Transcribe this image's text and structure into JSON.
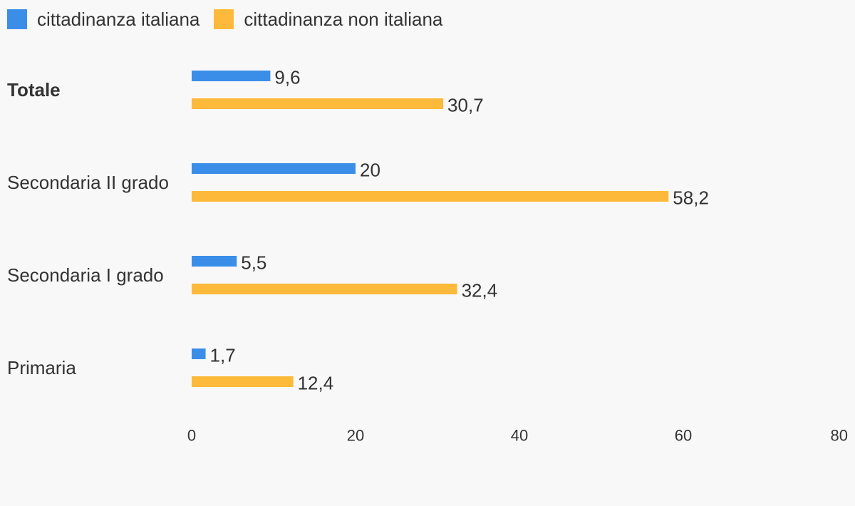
{
  "chart_data": {
    "type": "bar",
    "orientation": "horizontal",
    "categories": [
      "Totale",
      "Secondaria II grado",
      "Secondaria I grado",
      "Primaria"
    ],
    "emphasized_category": "Totale",
    "series": [
      {
        "name": "cittadinanza italiana",
        "color": "#3a8ee8",
        "values": [
          9.6,
          20,
          5.5,
          1.7
        ],
        "value_labels": [
          "9,6",
          "20",
          "5,5",
          "1,7"
        ]
      },
      {
        "name": "cittadinanza non italiana",
        "color": "#fdb93a",
        "values": [
          30.7,
          58.2,
          32.4,
          12.4
        ],
        "value_labels": [
          "30,7",
          "58,2",
          "32,4",
          "12,4"
        ]
      }
    ],
    "xlim": [
      0,
      80
    ],
    "x_ticks": [
      0,
      20,
      40,
      60,
      80
    ],
    "x_tick_labels": [
      "0",
      "20",
      "40",
      "60",
      "80"
    ],
    "grid": false,
    "legend_position": "top-left"
  },
  "colors": {
    "background": "#f8f8f8",
    "text": "#333333"
  }
}
